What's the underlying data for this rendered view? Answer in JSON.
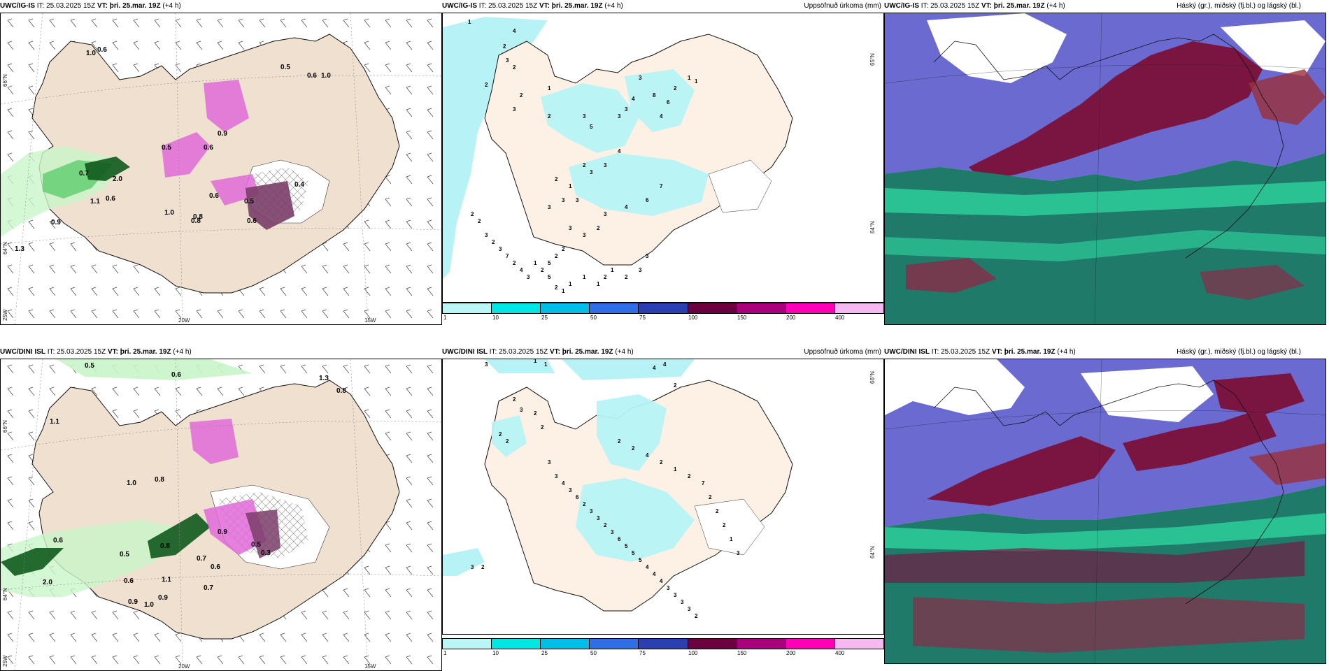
{
  "rows": [
    {
      "model": "UWC/IG-IS",
      "panels": [
        {
          "id": "wind",
          "it_label": "IT:",
          "it_value": "25.03.2025 15Z",
          "vt_label": "VT:",
          "vt_value": "þri. 25.mar. 19Z",
          "offset": "(+4 h)",
          "right_title": ""
        },
        {
          "id": "precip",
          "it_label": "IT:",
          "it_value": "25.03.2025 15Z",
          "vt_label": "VT:",
          "vt_value": "þri. 25.mar. 19Z",
          "offset": "(+4 h)",
          "right_title": "Uppsöfnuð úrkoma (mm)"
        },
        {
          "id": "cloud",
          "it_label": "IT:",
          "it_value": "25.03.2025 15Z",
          "vt_label": "VT:",
          "vt_value": "þri. 25.mar. 19Z",
          "offset": "(+4 h)",
          "right_title": "Háský (gr.), miðský (fj.bl.) og lágský (bl.)"
        }
      ]
    },
    {
      "model": "UWC/DINI ISL",
      "panels": [
        {
          "id": "wind",
          "it_label": "IT:",
          "it_value": "25.03.2025 15Z",
          "vt_label": "VT:",
          "vt_value": "þri. 25.mar. 19Z",
          "offset": "(+4 h)",
          "right_title": ""
        },
        {
          "id": "precip",
          "it_label": "IT:",
          "it_value": "25.03.2025 15Z",
          "vt_label": "VT:",
          "vt_value": "þri. 25.mar. 19Z",
          "offset": "(+4 h)",
          "right_title": "Uppsöfnuð úrkoma (mm)"
        },
        {
          "id": "cloud",
          "it_label": "IT:",
          "it_value": "25.03.2025 15Z",
          "vt_label": "VT:",
          "vt_value": "þri. 25.mar. 19Z",
          "offset": "(+4 h)",
          "right_title": "Háský (gr.), miðský (fj.bl.) og lágský (bl.)"
        }
      ]
    }
  ],
  "grid_labels": {
    "lat_66": "66°N",
    "lat_64": "64°N",
    "lat_65": "65°N",
    "lon_25": "25W",
    "lon_20": "20W",
    "lon_15": "15W"
  },
  "legend": {
    "colors": [
      "#b9f6f6",
      "#00e6e6",
      "#00bfe6",
      "#2f6fe6",
      "#2a3fb0",
      "#6a0040",
      "#a8007e",
      "#ff00b4",
      "#f5b8f0"
    ],
    "ticks": [
      "1",
      "10",
      "25",
      "50",
      "75",
      "100",
      "150",
      "200",
      "400"
    ]
  },
  "colors": {
    "land": "#efe0cf",
    "land_precip": "#fdf0e4",
    "green_light": "#c9f5c9",
    "green_mid": "#5ccd6c",
    "green_dark": "#0f5a1d",
    "magenta": "#e06ad8",
    "purple_dark": "#7a3d68",
    "cyan": "#b7f3f6",
    "cloud_high": "#7a1440",
    "cloud_mid": "#6a6ad0",
    "cloud_low": "#1f9a7a",
    "cloud_green": "#2fd9a2"
  },
  "wind_labels_top": [
    "1.0",
    "0.6",
    "0.5",
    "0.6",
    "1.0",
    "0.9",
    "0.6",
    "0.5",
    "0.7",
    "2.0",
    "1.1",
    "0.6",
    "0.9",
    "1.3",
    "1.0",
    "0.8",
    "0.6",
    "0.8",
    "0.5",
    "0.6",
    "0.4"
  ],
  "wind_labels_bottom": [
    "0.5",
    "0.6",
    "1.3",
    "0.8",
    "1.1",
    "1.0",
    "0.8",
    "0.9",
    "0.6",
    "0.5",
    "0.8",
    "0.7",
    "0.6",
    "0.6",
    "0.9",
    "1.0",
    "0.9",
    "0.7",
    "1.1",
    "2.0",
    "0.5",
    "0.3"
  ],
  "precip_labels_top": [
    "1",
    "4",
    "2",
    "3",
    "2",
    "2",
    "1",
    "2",
    "3",
    "2",
    "3",
    "5",
    "3",
    "4",
    "3",
    "3",
    "8",
    "2",
    "6",
    "4",
    "1",
    "1",
    "4",
    "3",
    "3",
    "2",
    "2",
    "1",
    "3",
    "3",
    "3",
    "7",
    "6",
    "4",
    "3",
    "2",
    "3",
    "3",
    "2",
    "2",
    "5",
    "3",
    "3",
    "2",
    "1",
    "2",
    "1",
    "1",
    "1",
    "1",
    "2",
    "5",
    "2",
    "1",
    "3",
    "4",
    "2",
    "7",
    "3",
    "2",
    "3",
    "2",
    "2"
  ],
  "precip_labels_bottom": [
    "3",
    "1",
    "1",
    "4",
    "4",
    "2",
    "3",
    "2",
    "2",
    "3",
    "2",
    "2",
    "2",
    "2",
    "3",
    "3",
    "4",
    "3",
    "6",
    "2",
    "3",
    "3",
    "2",
    "3",
    "6",
    "5",
    "5",
    "5",
    "4",
    "4",
    "4",
    "3",
    "3",
    "3",
    "3",
    "2",
    "2",
    "2",
    "4",
    "2",
    "1",
    "2",
    "7",
    "2",
    "2",
    "2",
    "1",
    "3"
  ]
}
